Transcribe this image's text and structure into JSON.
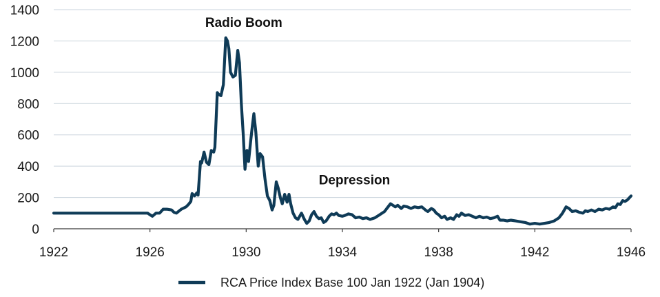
{
  "chart_data": {
    "type": "line",
    "title": "",
    "xlabel": "",
    "ylabel": "",
    "xlim": [
      1922,
      1946
    ],
    "ylim": [
      0,
      1400
    ],
    "x_ticks": [
      1922,
      1926,
      1930,
      1934,
      1938,
      1942,
      1946
    ],
    "y_ticks": [
      0,
      200,
      400,
      600,
      800,
      1000,
      1200,
      1400
    ],
    "grid": "horizontal",
    "legend_position": "bottom-center",
    "line_color": "#0f3b57",
    "annotations": [
      {
        "text": "Radio Boom",
        "x": 1929.9,
        "y": 1290
      },
      {
        "text": "Depression",
        "x": 1934.5,
        "y": 285
      }
    ],
    "series": [
      {
        "name": "RCA Price Index Base 100 Jan 1922 (Jan 1904)",
        "points": [
          [
            1922.0,
            100
          ],
          [
            1925.9,
            100
          ],
          [
            1926.0,
            90
          ],
          [
            1926.1,
            80
          ],
          [
            1926.25,
            100
          ],
          [
            1926.4,
            100
          ],
          [
            1926.55,
            125
          ],
          [
            1926.7,
            125
          ],
          [
            1926.9,
            120
          ],
          [
            1927.0,
            105
          ],
          [
            1927.1,
            100
          ],
          [
            1927.3,
            125
          ],
          [
            1927.5,
            140
          ],
          [
            1927.6,
            155
          ],
          [
            1927.7,
            175
          ],
          [
            1927.75,
            225
          ],
          [
            1927.85,
            210
          ],
          [
            1927.95,
            230
          ],
          [
            1928.0,
            215
          ],
          [
            1928.1,
            430
          ],
          [
            1928.15,
            420
          ],
          [
            1928.25,
            490
          ],
          [
            1928.35,
            425
          ],
          [
            1928.45,
            410
          ],
          [
            1928.55,
            500
          ],
          [
            1928.65,
            490
          ],
          [
            1928.7,
            520
          ],
          [
            1928.8,
            870
          ],
          [
            1928.85,
            860
          ],
          [
            1928.95,
            850
          ],
          [
            1929.05,
            920
          ],
          [
            1929.15,
            1220
          ],
          [
            1929.22,
            1200
          ],
          [
            1929.28,
            1150
          ],
          [
            1929.35,
            1000
          ],
          [
            1929.45,
            970
          ],
          [
            1929.55,
            980
          ],
          [
            1929.65,
            1140
          ],
          [
            1929.72,
            1060
          ],
          [
            1929.8,
            800
          ],
          [
            1929.88,
            600
          ],
          [
            1929.95,
            380
          ],
          [
            1930.03,
            500
          ],
          [
            1930.1,
            430
          ],
          [
            1930.18,
            550
          ],
          [
            1930.25,
            650
          ],
          [
            1930.32,
            735
          ],
          [
            1930.4,
            620
          ],
          [
            1930.5,
            400
          ],
          [
            1930.58,
            480
          ],
          [
            1930.68,
            460
          ],
          [
            1930.78,
            320
          ],
          [
            1930.88,
            210
          ],
          [
            1930.98,
            180
          ],
          [
            1931.08,
            120
          ],
          [
            1931.15,
            150
          ],
          [
            1931.25,
            300
          ],
          [
            1931.33,
            260
          ],
          [
            1931.42,
            200
          ],
          [
            1931.5,
            160
          ],
          [
            1931.6,
            220
          ],
          [
            1931.7,
            170
          ],
          [
            1931.78,
            220
          ],
          [
            1931.85,
            160
          ],
          [
            1931.95,
            100
          ],
          [
            1932.05,
            70
          ],
          [
            1932.15,
            60
          ],
          [
            1932.3,
            100
          ],
          [
            1932.42,
            60
          ],
          [
            1932.52,
            35
          ],
          [
            1932.62,
            50
          ],
          [
            1932.72,
            90
          ],
          [
            1932.82,
            110
          ],
          [
            1932.92,
            80
          ],
          [
            1933.02,
            65
          ],
          [
            1933.12,
            70
          ],
          [
            1933.22,
            40
          ],
          [
            1933.32,
            50
          ],
          [
            1933.45,
            80
          ],
          [
            1933.55,
            95
          ],
          [
            1933.65,
            90
          ],
          [
            1933.75,
            100
          ],
          [
            1933.85,
            85
          ],
          [
            1934.0,
            80
          ],
          [
            1934.1,
            85
          ],
          [
            1934.25,
            95
          ],
          [
            1934.4,
            90
          ],
          [
            1934.55,
            70
          ],
          [
            1934.7,
            75
          ],
          [
            1934.85,
            65
          ],
          [
            1935.0,
            70
          ],
          [
            1935.15,
            60
          ],
          [
            1935.35,
            70
          ],
          [
            1935.55,
            90
          ],
          [
            1935.75,
            110
          ],
          [
            1935.9,
            140
          ],
          [
            1936.0,
            160
          ],
          [
            1936.1,
            150
          ],
          [
            1936.2,
            140
          ],
          [
            1936.3,
            150
          ],
          [
            1936.45,
            130
          ],
          [
            1936.55,
            145
          ],
          [
            1936.7,
            140
          ],
          [
            1936.85,
            130
          ],
          [
            1937.0,
            140
          ],
          [
            1937.15,
            135
          ],
          [
            1937.3,
            140
          ],
          [
            1937.45,
            120
          ],
          [
            1937.55,
            110
          ],
          [
            1937.7,
            130
          ],
          [
            1937.8,
            120
          ],
          [
            1937.9,
            100
          ],
          [
            1938.0,
            90
          ],
          [
            1938.12,
            70
          ],
          [
            1938.25,
            80
          ],
          [
            1938.35,
            60
          ],
          [
            1938.5,
            70
          ],
          [
            1938.62,
            60
          ],
          [
            1938.75,
            90
          ],
          [
            1938.85,
            80
          ],
          [
            1938.95,
            100
          ],
          [
            1939.1,
            85
          ],
          [
            1939.25,
            90
          ],
          [
            1939.4,
            80
          ],
          [
            1939.55,
            70
          ],
          [
            1939.7,
            80
          ],
          [
            1939.85,
            70
          ],
          [
            1940.0,
            75
          ],
          [
            1940.15,
            65
          ],
          [
            1940.3,
            70
          ],
          [
            1940.45,
            80
          ],
          [
            1940.55,
            55
          ],
          [
            1940.7,
            55
          ],
          [
            1940.85,
            50
          ],
          [
            1941.0,
            55
          ],
          [
            1941.2,
            50
          ],
          [
            1941.4,
            45
          ],
          [
            1941.6,
            40
          ],
          [
            1941.8,
            30
          ],
          [
            1942.0,
            35
          ],
          [
            1942.2,
            30
          ],
          [
            1942.4,
            35
          ],
          [
            1942.6,
            40
          ],
          [
            1942.8,
            50
          ],
          [
            1943.0,
            70
          ],
          [
            1943.15,
            100
          ],
          [
            1943.3,
            140
          ],
          [
            1943.42,
            130
          ],
          [
            1943.55,
            110
          ],
          [
            1943.7,
            115
          ],
          [
            1943.85,
            105
          ],
          [
            1944.0,
            100
          ],
          [
            1944.1,
            115
          ],
          [
            1944.2,
            110
          ],
          [
            1944.35,
            120
          ],
          [
            1944.5,
            110
          ],
          [
            1944.65,
            125
          ],
          [
            1944.8,
            120
          ],
          [
            1944.95,
            130
          ],
          [
            1945.1,
            125
          ],
          [
            1945.25,
            140
          ],
          [
            1945.35,
            135
          ],
          [
            1945.45,
            160
          ],
          [
            1945.55,
            155
          ],
          [
            1945.65,
            180
          ],
          [
            1945.75,
            175
          ],
          [
            1945.85,
            185
          ],
          [
            1946.0,
            210
          ]
        ]
      }
    ]
  }
}
